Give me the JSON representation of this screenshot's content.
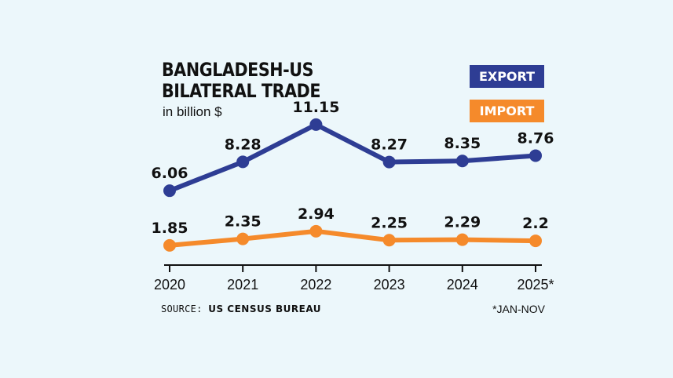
{
  "title_line1": "BANGLADESH-US",
  "title_line2": "BILATERAL TRADE",
  "subtitle": "in billion $",
  "legend": {
    "export": "EXPORT",
    "import": "IMPORT"
  },
  "colors": {
    "background": "#ecf7fb",
    "export": "#2e3d94",
    "import": "#f58a2b",
    "axis": "#111111"
  },
  "source_label": "SOURCE:",
  "source_value": "US CENSUS BUREAU",
  "footnote": "*JAN-NOV",
  "chart_data": {
    "type": "line",
    "categories": [
      "2020",
      "2021",
      "2022",
      "2023",
      "2024",
      "2025*"
    ],
    "series": [
      {
        "name": "EXPORT",
        "values": [
          6.06,
          8.28,
          11.15,
          8.27,
          8.35,
          8.76
        ],
        "labels": [
          "6.06",
          "8.28",
          "11.15",
          "8.27",
          "8.35",
          "8.76"
        ]
      },
      {
        "name": "IMPORT",
        "values": [
          1.85,
          2.35,
          2.94,
          2.25,
          2.29,
          2.2
        ],
        "labels": [
          "1.85",
          "2.35",
          "2.94",
          "2.25",
          "2.29",
          "2.2"
        ]
      }
    ],
    "title": "BANGLADESH-US BILATERAL TRADE",
    "subtitle": "in billion $",
    "grid": false,
    "legend_position": "top-right"
  }
}
